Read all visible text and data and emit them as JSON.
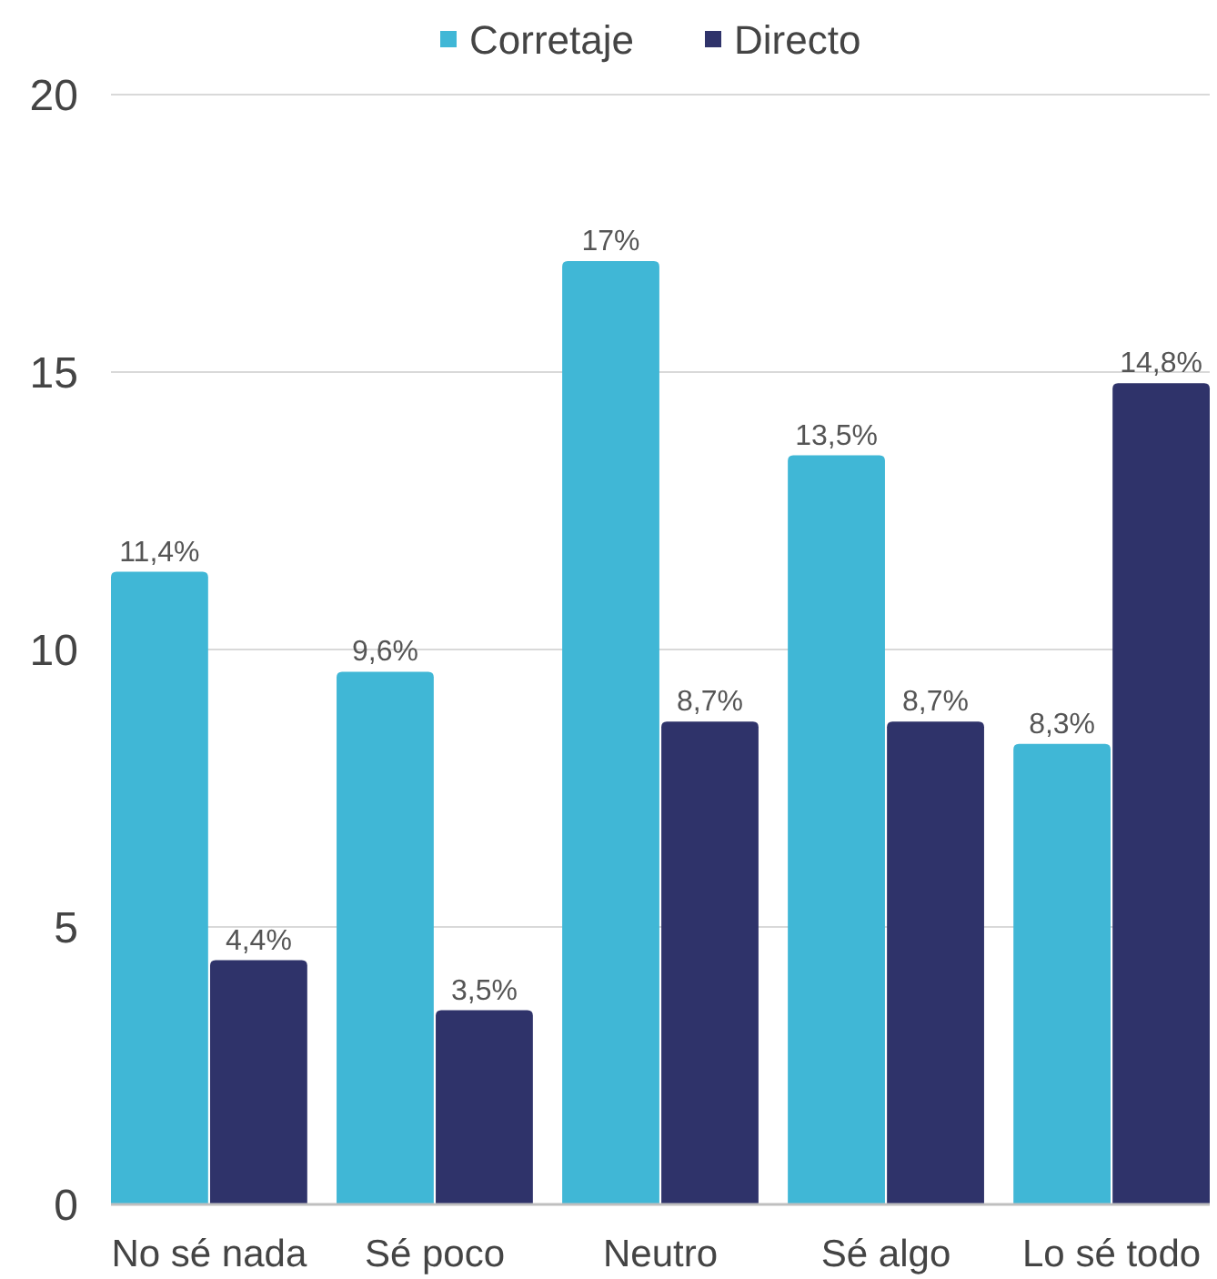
{
  "chart_data": {
    "type": "bar",
    "categories": [
      "No sé nada",
      "Sé poco",
      "Neutro",
      "Sé algo",
      "Lo sé todo"
    ],
    "series": [
      {
        "name": "Corretaje",
        "color": "#40b7d6",
        "values": [
          11.4,
          9.6,
          17,
          13.5,
          8.3
        ],
        "value_labels": [
          "11,4%",
          "9,6%",
          "17%",
          "13,5%",
          "8,3%"
        ]
      },
      {
        "name": "Directo",
        "color": "#2f336a",
        "values": [
          4.4,
          3.5,
          8.7,
          8.7,
          14.8
        ],
        "value_labels": [
          "4,4%",
          "3,5%",
          "8,7%",
          "8,7%",
          "14,8%"
        ]
      }
    ],
    "ylim": [
      0,
      20
    ],
    "yticks": [
      0,
      5,
      10,
      15,
      20
    ],
    "grid": "y",
    "legend": "top"
  }
}
